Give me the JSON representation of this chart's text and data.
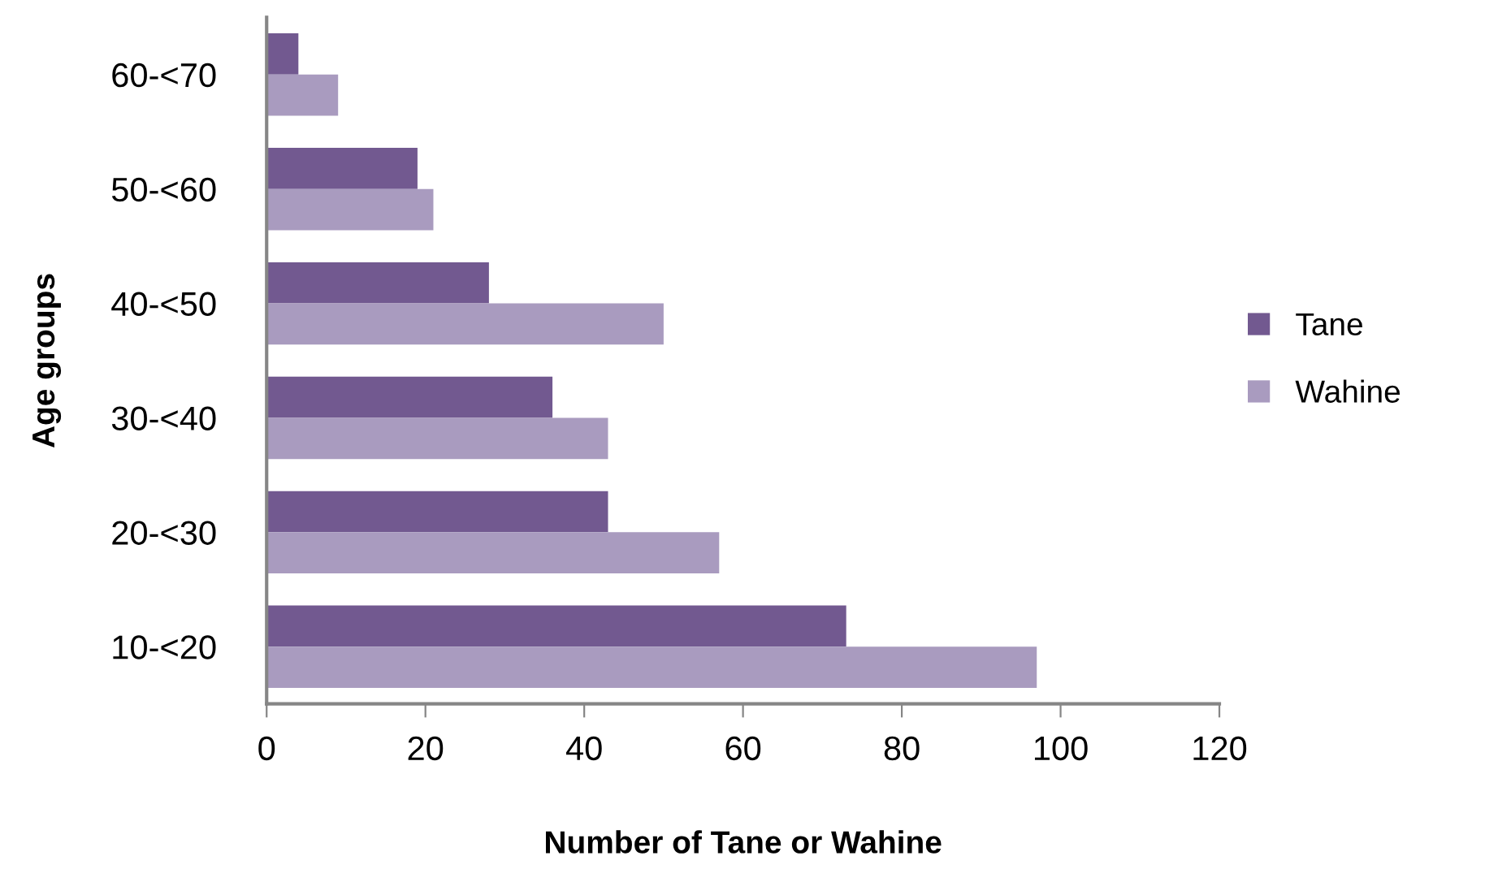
{
  "chart_data": {
    "type": "bar",
    "orientation": "horizontal",
    "xlabel": "Number of Tane or Wahine",
    "ylabel": "Age groups",
    "categories": [
      "60-<70",
      "50-<60",
      "40-<50",
      "30-<40",
      "20-<30",
      "10-<20"
    ],
    "series": [
      {
        "name": "Tane",
        "color": "#725990",
        "values": [
          4,
          19,
          28,
          36,
          43,
          73
        ]
      },
      {
        "name": "Wahine",
        "color": "#a99bbf",
        "values": [
          9,
          21,
          50,
          43,
          57,
          97
        ]
      }
    ],
    "xlim": [
      0,
      120
    ],
    "xticks": [
      0,
      20,
      40,
      60,
      80,
      100,
      120
    ],
    "grid": false,
    "legend": "right"
  }
}
